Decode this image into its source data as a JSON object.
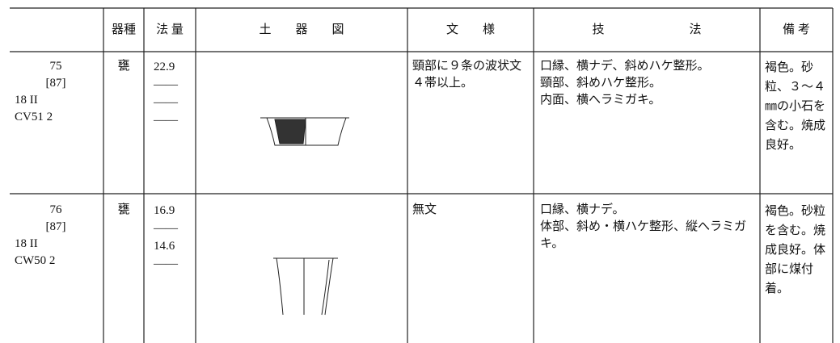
{
  "header": [
    "",
    "器種",
    "法 量",
    "土　　器　　図",
    "文　　様",
    "技　　　　　　　法",
    "備 考"
  ],
  "rows": [
    {
      "id": [
        "75",
        "[87]",
        "18 II",
        "CV51 2"
      ],
      "kind": "甕",
      "measures": [
        "22.9",
        "——",
        "——",
        "——"
      ],
      "pattern": "頸部に９条の波状文４帯以上。",
      "technique": [
        "口縁、横ナデ、斜めハケ整形。",
        "頸部、斜めハケ整形。",
        "内面、横へラミガキ。"
      ],
      "notes": "褐色。砂粒、３～４㎜の小石を含む。焼成良好。"
    },
    {
      "id": [
        "76",
        "[87]",
        "18 II",
        "CW50 2"
      ],
      "kind": "甕",
      "measures": [
        "16.9",
        "——",
        "14.6",
        "——"
      ],
      "pattern": "無文",
      "technique": [
        "口縁、横ナデ。",
        "体部、斜め・横ハケ整形、縦へラミガキ。"
      ],
      "notes": "褐色。砂粒を含む。焼成良好。体部に煤付着。"
    }
  ]
}
